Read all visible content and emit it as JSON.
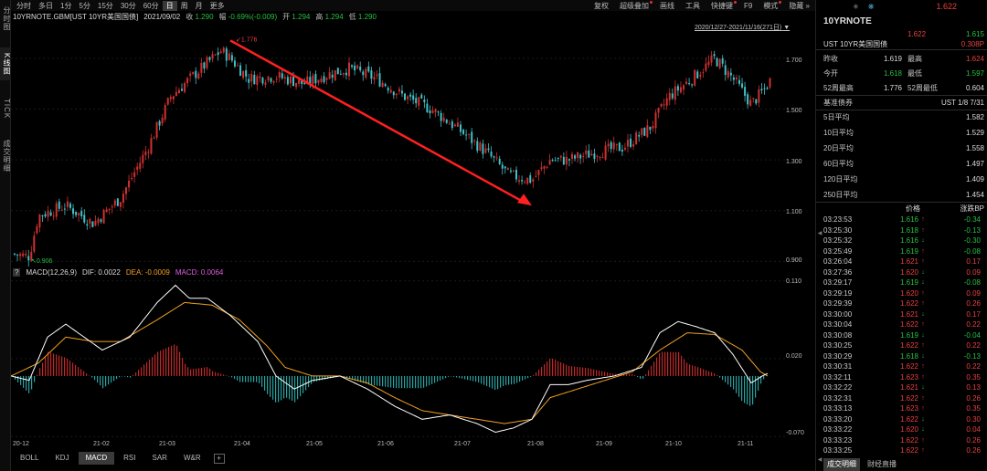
{
  "left_tabs": [
    {
      "label": "分时图",
      "active": false
    },
    {
      "label": "K线图",
      "active": true
    },
    {
      "label": "TICK",
      "active": false
    },
    {
      "label": "成交明细",
      "active": false
    }
  ],
  "toolbar": {
    "periods": [
      "分时",
      "多日",
      "1分",
      "5分",
      "15分",
      "30分",
      "60分",
      "日",
      "周",
      "月",
      "更多"
    ],
    "active_period": "日",
    "right": [
      "复权",
      "超级叠加",
      "画线",
      "工具",
      "快捷键",
      "F9",
      "模式",
      "隐藏"
    ]
  },
  "info": {
    "symbol": "10YRNOTE.GBM[UST 10YR美国国债]",
    "date": "2021/09/02",
    "close_label": "收",
    "close": "1.290",
    "change_label": "幅",
    "change": "-0.69%(-0.009)",
    "open_label": "开",
    "open": "1.294",
    "high_label": "高",
    "high": "1.294",
    "low_label": "低",
    "low": "1.290"
  },
  "range_text": "2020/12/27-2021/11/16(271日)",
  "main_chart": {
    "y_ticks": [
      "1.700",
      "1.500",
      "1.300",
      "1.100",
      "0.900"
    ],
    "max_label": "1.776",
    "min_label": "0.906"
  },
  "macd": {
    "help": "?",
    "title": "MACD(12,26,9)",
    "dif_label": "DIF: 0.0022",
    "dea_label": "DEA: -0.0009",
    "macd_label": "MACD: 0.0064",
    "y_ticks": [
      "0.110",
      "0.020",
      "-0.070"
    ]
  },
  "x_ticks": [
    "20-12",
    "21-02",
    "21-03",
    "21-04",
    "21-05",
    "21-06",
    "21-07",
    "21-08",
    "21-09",
    "21-10",
    "21-11"
  ],
  "bottom_tabs": [
    "BOLL",
    "KDJ",
    "MACD",
    "RSI",
    "SAR",
    "W&R"
  ],
  "active_bottom_tab": "MACD",
  "right_panel": {
    "last_price": "1.622",
    "title": "10YRNOTE",
    "bid": "1.622",
    "ask": "1.615",
    "name": "UST 10YR美国国债",
    "bp_change": "0.308P",
    "stats": [
      {
        "l1": "昨收",
        "v1": "1.619",
        "c1": "wh",
        "l2": "最高",
        "v2": "1.624",
        "c2": "up"
      },
      {
        "l1": "今开",
        "v1": "1.618",
        "c1": "dn",
        "l2": "最低",
        "v2": "1.597",
        "c2": "dn"
      },
      {
        "l1": "52周最高",
        "v1": "1.776",
        "c1": "wh",
        "l2": "52周最低",
        "v2": "0.604",
        "c2": "wh"
      }
    ],
    "bench_label": "基准债券",
    "bench_value": "UST 1/8 7/31",
    "averages": [
      {
        "label": "5日平均",
        "value": "1.582"
      },
      {
        "label": "10日平均",
        "value": "1.529"
      },
      {
        "label": "20日平均",
        "value": "1.558"
      },
      {
        "label": "60日平均",
        "value": "1.497"
      },
      {
        "label": "120日平均",
        "value": "1.409"
      },
      {
        "label": "250日平均",
        "value": "1.454"
      }
    ],
    "trade_header": {
      "price": "价格",
      "bp": "涨跌BP"
    },
    "trades": [
      {
        "time": "03:23:53",
        "price": "1.616",
        "dir": "up",
        "bp": "-0.34"
      },
      {
        "time": "03:25:30",
        "price": "1.618",
        "dir": "up",
        "bp": "-0.13"
      },
      {
        "time": "03:25:32",
        "price": "1.616",
        "dir": "dn",
        "bp": "-0.30"
      },
      {
        "time": "03:25:49",
        "price": "1.619",
        "dir": "up",
        "bp": "-0.08"
      },
      {
        "time": "03:26:04",
        "price": "1.621",
        "dir": "up",
        "bp": "0.17"
      },
      {
        "time": "03:27:36",
        "price": "1.620",
        "dir": "dn",
        "bp": "0.09"
      },
      {
        "time": "03:29:17",
        "price": "1.619",
        "dir": "dn",
        "bp": "-0.08"
      },
      {
        "time": "03:29:19",
        "price": "1.620",
        "dir": "up",
        "bp": "0.09"
      },
      {
        "time": "03:29:39",
        "price": "1.622",
        "dir": "up",
        "bp": "0.26"
      },
      {
        "time": "03:30:00",
        "price": "1.621",
        "dir": "dn",
        "bp": "0.17"
      },
      {
        "time": "03:30:04",
        "price": "1.622",
        "dir": "up",
        "bp": "0.22"
      },
      {
        "time": "03:30:08",
        "price": "1.619",
        "dir": "dn",
        "bp": "-0.04"
      },
      {
        "time": "03:30:25",
        "price": "1.622",
        "dir": "up",
        "bp": "0.22"
      },
      {
        "time": "03:30:29",
        "price": "1.618",
        "dir": "dn",
        "bp": "-0.13"
      },
      {
        "time": "03:30:31",
        "price": "1.622",
        "dir": "up",
        "bp": "0.22"
      },
      {
        "time": "03:32:11",
        "price": "1.623",
        "dir": "up",
        "bp": "0.35"
      },
      {
        "time": "03:32:22",
        "price": "1.621",
        "dir": "dn",
        "bp": "0.13"
      },
      {
        "time": "03:32:31",
        "price": "1.622",
        "dir": "up",
        "bp": "0.26"
      },
      {
        "time": "03:33:13",
        "price": "1.623",
        "dir": "up",
        "bp": "0.35"
      },
      {
        "time": "03:33:20",
        "price": "1.622",
        "dir": "dn",
        "bp": "0.30"
      },
      {
        "time": "03:33:22",
        "price": "1.620",
        "dir": "dn",
        "bp": "0.04"
      },
      {
        "time": "03:33:23",
        "price": "1.622",
        "dir": "up",
        "bp": "0.26"
      },
      {
        "time": "03:33:25",
        "price": "1.622",
        "dir": "up",
        "bp": "0.26"
      }
    ],
    "bottom_tabs": [
      "成交明细",
      "财经直播"
    ],
    "active_bottom_tab": "成交明细"
  },
  "colors": {
    "up": "#e84040",
    "down": "#26c040",
    "dif": "#ffffff",
    "dea": "#f0a020",
    "hist_up": "#c02828",
    "hist_down": "#2aa0a0",
    "arrow": "#ff2020"
  }
}
